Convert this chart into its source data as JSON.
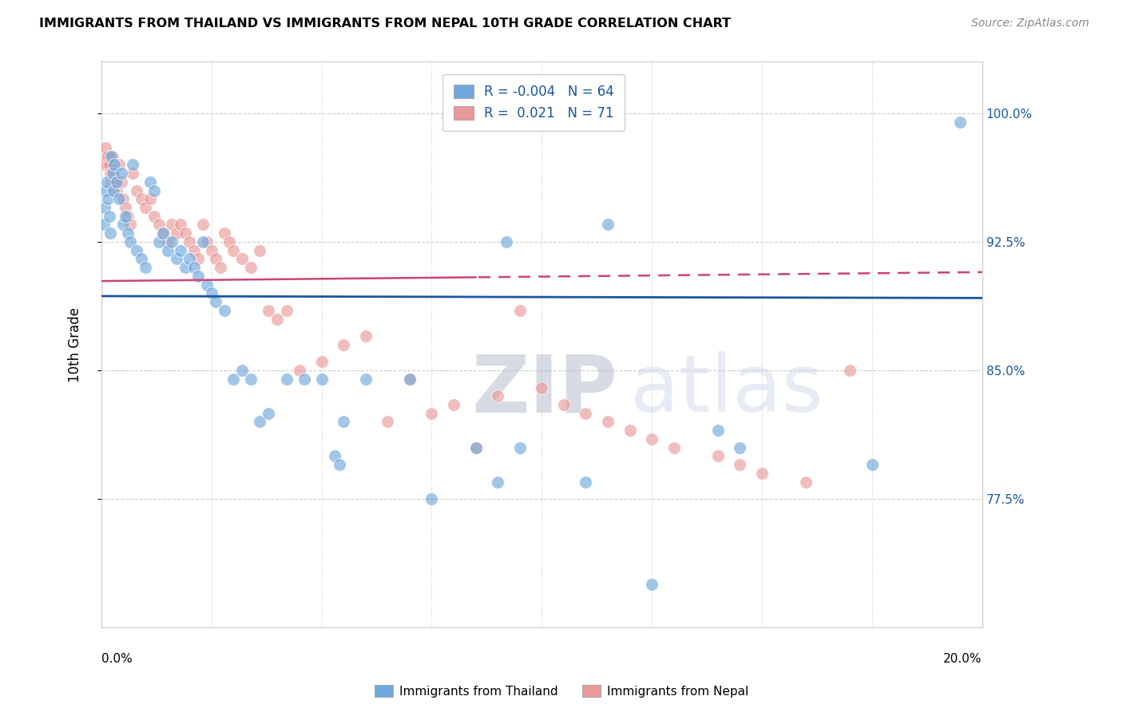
{
  "title": "IMMIGRANTS FROM THAILAND VS IMMIGRANTS FROM NEPAL 10TH GRADE CORRELATION CHART",
  "source": "Source: ZipAtlas.com",
  "ylabel": "10th Grade",
  "right_yticks": [
    77.5,
    85.0,
    92.5,
    100.0
  ],
  "right_yticklabels": [
    "77.5%",
    "85.0%",
    "92.5%",
    "100.0%"
  ],
  "xlim": [
    0.0,
    20.0
  ],
  "ylim": [
    70.0,
    103.0
  ],
  "legend_R_blue": "-0.004",
  "legend_N_blue": "64",
  "legend_R_pink": "0.021",
  "legend_N_pink": "71",
  "blue_color": "#6fa8dc",
  "pink_color": "#ea9999",
  "blue_line_color": "#1a56a0",
  "pink_line_color": "#cc4477",
  "watermark_zip": "ZIP",
  "watermark_atlas": "atlas",
  "thailand_x": [
    0.05,
    0.08,
    0.1,
    0.12,
    0.15,
    0.18,
    0.2,
    0.22,
    0.25,
    0.28,
    0.3,
    0.35,
    0.4,
    0.45,
    0.5,
    0.55,
    0.6,
    0.65,
    0.7,
    0.8,
    0.9,
    1.0,
    1.1,
    1.2,
    1.3,
    1.4,
    1.5,
    1.6,
    1.7,
    1.8,
    1.9,
    2.0,
    2.1,
    2.2,
    2.3,
    2.4,
    2.5,
    2.6,
    2.8,
    3.0,
    3.2,
    3.4,
    3.6,
    3.8,
    4.2,
    4.6,
    5.0,
    5.3,
    5.4,
    5.5,
    6.0,
    7.0,
    7.5,
    8.5,
    9.0,
    9.2,
    9.5,
    11.0,
    11.5,
    12.5,
    14.0,
    14.5,
    17.5,
    19.5
  ],
  "thailand_y": [
    93.5,
    94.5,
    95.5,
    96.0,
    95.0,
    94.0,
    93.0,
    97.5,
    96.5,
    95.5,
    97.0,
    96.0,
    95.0,
    96.5,
    93.5,
    94.0,
    93.0,
    92.5,
    97.0,
    92.0,
    91.5,
    91.0,
    96.0,
    95.5,
    92.5,
    93.0,
    92.0,
    92.5,
    91.5,
    92.0,
    91.0,
    91.5,
    91.0,
    90.5,
    92.5,
    90.0,
    89.5,
    89.0,
    88.5,
    84.5,
    85.0,
    84.5,
    82.0,
    82.5,
    84.5,
    84.5,
    84.5,
    80.0,
    79.5,
    82.0,
    84.5,
    84.5,
    77.5,
    80.5,
    78.5,
    92.5,
    80.5,
    78.5,
    93.5,
    72.5,
    81.5,
    80.5,
    79.5,
    99.5
  ],
  "nepal_x": [
    0.05,
    0.08,
    0.1,
    0.12,
    0.15,
    0.18,
    0.2,
    0.22,
    0.25,
    0.28,
    0.3,
    0.35,
    0.4,
    0.45,
    0.5,
    0.55,
    0.6,
    0.65,
    0.7,
    0.8,
    0.9,
    1.0,
    1.1,
    1.2,
    1.3,
    1.4,
    1.5,
    1.6,
    1.7,
    1.8,
    1.9,
    2.0,
    2.1,
    2.2,
    2.3,
    2.4,
    2.5,
    2.6,
    2.7,
    2.8,
    2.9,
    3.0,
    3.2,
    3.4,
    3.6,
    3.8,
    4.0,
    4.2,
    4.5,
    5.0,
    5.5,
    6.0,
    6.5,
    7.0,
    7.5,
    8.0,
    8.5,
    9.0,
    9.5,
    10.0,
    10.5,
    11.0,
    11.5,
    12.0,
    12.5,
    13.0,
    14.0,
    14.5,
    15.0,
    16.0,
    17.0
  ],
  "nepal_y": [
    97.0,
    97.5,
    98.0,
    97.0,
    97.5,
    97.0,
    96.5,
    96.0,
    97.5,
    96.5,
    96.0,
    95.5,
    97.0,
    96.0,
    95.0,
    94.5,
    94.0,
    93.5,
    96.5,
    95.5,
    95.0,
    94.5,
    95.0,
    94.0,
    93.5,
    93.0,
    92.5,
    93.5,
    93.0,
    93.5,
    93.0,
    92.5,
    92.0,
    91.5,
    93.5,
    92.5,
    92.0,
    91.5,
    91.0,
    93.0,
    92.5,
    92.0,
    91.5,
    91.0,
    92.0,
    88.5,
    88.0,
    88.5,
    85.0,
    85.5,
    86.5,
    87.0,
    82.0,
    84.5,
    82.5,
    83.0,
    80.5,
    83.5,
    88.5,
    84.0,
    83.0,
    82.5,
    82.0,
    81.5,
    81.0,
    80.5,
    80.0,
    79.5,
    79.0,
    78.5,
    85.0
  ]
}
